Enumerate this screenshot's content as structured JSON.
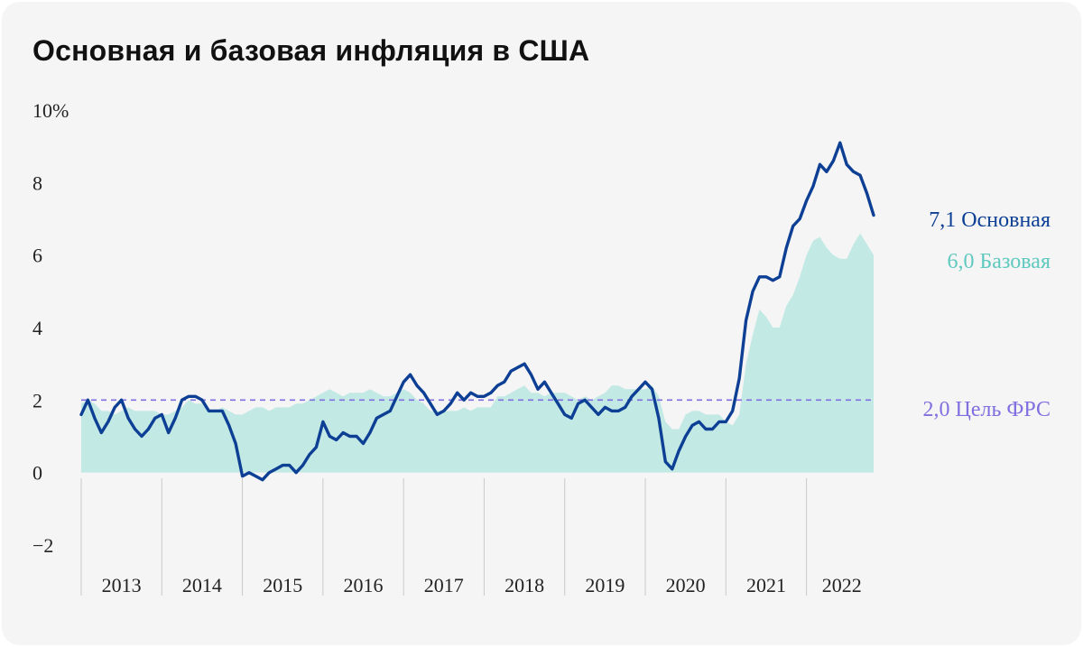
{
  "title": "Основная и базовая инфляция в США",
  "colors": {
    "background": "#f5f5f5",
    "headline": "#0d3f94",
    "core_fill": "#c3e9e5",
    "core_label": "#5fc9c0",
    "target": "#7f6fe0"
  },
  "chart_data": {
    "type": "line",
    "title": "Основная и базовая инфляция в США",
    "xlabel": "",
    "ylabel": "",
    "x_start": "2013-01",
    "x_end": "2022-11",
    "frequency": "monthly",
    "x_tick_labels": [
      "2013",
      "2014",
      "2015",
      "2016",
      "2017",
      "2018",
      "2019",
      "2020",
      "2021",
      "2022"
    ],
    "y_tick_labels": [
      "10%",
      "8",
      "6",
      "4",
      "2",
      "0",
      "−2"
    ],
    "y_ticks": [
      10,
      8,
      6,
      4,
      2,
      0,
      -2
    ],
    "ylim": [
      -2.5,
      10
    ],
    "grid": "vertical year separators",
    "legend": "right-end labels",
    "series": [
      {
        "name": "Основная",
        "style": "line",
        "end_label": "7,1",
        "values": [
          1.6,
          2.0,
          1.5,
          1.1,
          1.4,
          1.8,
          2.0,
          1.5,
          1.2,
          1.0,
          1.2,
          1.5,
          1.6,
          1.1,
          1.5,
          2.0,
          2.1,
          2.1,
          2.0,
          1.7,
          1.7,
          1.7,
          1.3,
          0.8,
          -0.1,
          0.0,
          -0.1,
          -0.2,
          0.0,
          0.1,
          0.2,
          0.2,
          0.0,
          0.2,
          0.5,
          0.7,
          1.4,
          1.0,
          0.9,
          1.1,
          1.0,
          1.0,
          0.8,
          1.1,
          1.5,
          1.6,
          1.7,
          2.1,
          2.5,
          2.7,
          2.4,
          2.2,
          1.9,
          1.6,
          1.7,
          1.9,
          2.2,
          2.0,
          2.2,
          2.1,
          2.1,
          2.2,
          2.4,
          2.5,
          2.8,
          2.9,
          3.0,
          2.7,
          2.3,
          2.5,
          2.2,
          1.9,
          1.6,
          1.5,
          1.9,
          2.0,
          1.8,
          1.6,
          1.8,
          1.7,
          1.7,
          1.8,
          2.1,
          2.3,
          2.5,
          2.3,
          1.5,
          0.3,
          0.1,
          0.6,
          1.0,
          1.3,
          1.4,
          1.2,
          1.2,
          1.4,
          1.4,
          1.7,
          2.6,
          4.2,
          5.0,
          5.4,
          5.4,
          5.3,
          5.4,
          6.2,
          6.8,
          7.0,
          7.5,
          7.9,
          8.5,
          8.3,
          8.6,
          9.1,
          8.5,
          8.3,
          8.2,
          7.7,
          7.1
        ],
        "end_value": 7.1
      },
      {
        "name": "Базовая",
        "style": "area",
        "end_label": "6,0",
        "values": [
          1.9,
          2.0,
          1.9,
          1.7,
          1.7,
          1.6,
          1.7,
          1.8,
          1.7,
          1.7,
          1.7,
          1.7,
          1.6,
          1.6,
          1.7,
          1.8,
          2.0,
          1.9,
          1.9,
          1.7,
          1.7,
          1.8,
          1.7,
          1.6,
          1.6,
          1.7,
          1.8,
          1.8,
          1.7,
          1.8,
          1.8,
          1.8,
          1.9,
          1.9,
          2.0,
          2.1,
          2.2,
          2.3,
          2.2,
          2.1,
          2.2,
          2.2,
          2.2,
          2.3,
          2.2,
          2.1,
          2.1,
          2.2,
          2.3,
          2.2,
          2.0,
          1.9,
          1.7,
          1.7,
          1.7,
          1.7,
          1.7,
          1.8,
          1.7,
          1.8,
          1.8,
          1.8,
          2.1,
          2.1,
          2.2,
          2.3,
          2.4,
          2.2,
          2.2,
          2.1,
          2.2,
          2.2,
          2.2,
          2.1,
          2.0,
          2.1,
          2.0,
          2.1,
          2.2,
          2.4,
          2.4,
          2.3,
          2.3,
          2.3,
          2.3,
          2.4,
          2.1,
          1.4,
          1.2,
          1.2,
          1.6,
          1.7,
          1.7,
          1.6,
          1.6,
          1.6,
          1.4,
          1.3,
          1.6,
          3.0,
          3.8,
          4.5,
          4.3,
          4.0,
          4.0,
          4.6,
          4.9,
          5.4,
          6.0,
          6.4,
          6.5,
          6.2,
          6.0,
          5.9,
          5.9,
          6.3,
          6.6,
          6.3,
          6.0
        ],
        "end_value": 6.0
      },
      {
        "name": "Цель ФРС",
        "style": "dashed",
        "end_label": "2,0",
        "values": [
          2.0
        ],
        "end_value": 2.0
      }
    ]
  }
}
